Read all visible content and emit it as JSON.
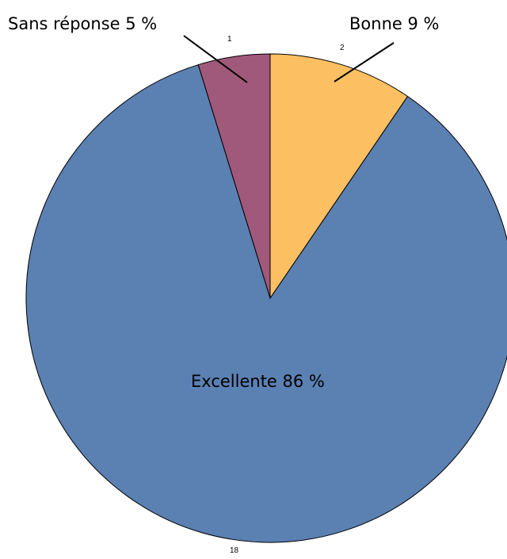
{
  "chart_data": {
    "type": "pie",
    "slices": [
      {
        "label": "Sans réponse 5 %",
        "count": "1",
        "value": 1,
        "color": "#A0597A"
      },
      {
        "label": "Bonne 9 %",
        "count": "2",
        "value": 2,
        "color": "#FCBF62"
      },
      {
        "label": "Excellente 86 %",
        "count": "18",
        "value": 18,
        "color": "#5B80B2"
      }
    ]
  }
}
